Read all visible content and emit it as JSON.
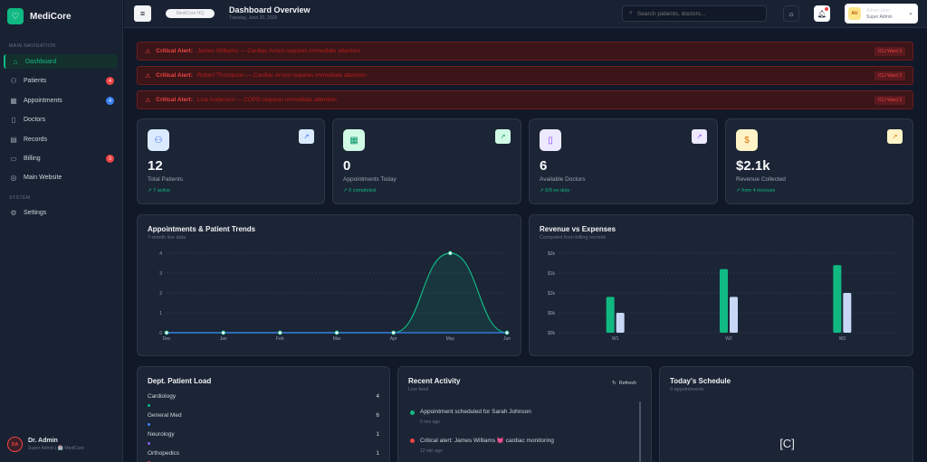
{
  "app": {
    "name": "MediCore"
  },
  "sidebar": {
    "section_main": "MAIN NAVIGATION",
    "section_system": "SYSTEM",
    "items": [
      {
        "label": "Dashboard",
        "icon": "home-icon",
        "active": true
      },
      {
        "label": "Patients",
        "icon": "users-icon",
        "badge": "4",
        "badge_color": "#ef4444"
      },
      {
        "label": "Appointments",
        "icon": "calendar-icon",
        "badge": "4",
        "badge_color": "#3b82f6"
      },
      {
        "label": "Doctors",
        "icon": "doctor-icon"
      },
      {
        "label": "Records",
        "icon": "file-icon"
      },
      {
        "label": "Billing",
        "icon": "wallet-icon",
        "badge": "3",
        "badge_color": "#ef4444"
      },
      {
        "label": "Main Website",
        "icon": "globe-icon"
      }
    ],
    "system_items": [
      {
        "label": "Settings",
        "icon": "gear-icon"
      }
    ],
    "user": {
      "initials": "DA",
      "name": "Dr. Admin",
      "role": "Super Admin | 🏥 MediCore"
    }
  },
  "header": {
    "pill_text": "MediCore HQ",
    "title": "Dashboard Overview",
    "date": "Tuesday, June 30, 2026",
    "search_placeholder": "Search patients, doctors...",
    "profile": {
      "initials": "AU",
      "name": "Admin User",
      "role": "Super Admin"
    }
  },
  "alerts": [
    {
      "label": "Critical Alert:",
      "message": "James Williams — Cardiac Arrest requires immediate attention",
      "location": "ICU Ward 3"
    },
    {
      "label": "Critical Alert:",
      "message": "Robert Thompson — Cardiac Arrest requires immediate attention",
      "location": "ICU Ward 3"
    },
    {
      "label": "Critical Alert:",
      "message": "Lisa Anderson — COPD requires immediate attention",
      "location": "ICU Ward 3"
    }
  ],
  "stats": [
    {
      "value": "12",
      "label": "Total Patients",
      "sub": "↗ 7 active",
      "icon": "users-icon",
      "icon_bg": "#dbeafe",
      "icon_color": "#2563eb",
      "trend_bg": "#dbeafe",
      "trend_color": "#2563eb"
    },
    {
      "value": "0",
      "label": "Appointments Today",
      "sub": "↗ 0 completed",
      "icon": "calendar-icon",
      "icon_bg": "#d1fae5",
      "icon_color": "#059669",
      "trend_bg": "#d1fae5",
      "trend_color": "#059669"
    },
    {
      "value": "6",
      "label": "Available Doctors",
      "sub": "↗ 6/9 on duty",
      "icon": "doctor-icon",
      "icon_bg": "#ede9fe",
      "icon_color": "#7c3aed",
      "trend_bg": "#ede9fe",
      "trend_color": "#7c3aed"
    },
    {
      "value": "$2.1k",
      "label": "Revenue Collected",
      "sub": "↗ from 4 invoices",
      "icon": "dollar-icon",
      "icon_bg": "#fef3c7",
      "icon_color": "#d97706",
      "trend_bg": "#fef3c7",
      "trend_color": "#d97706"
    }
  ],
  "trend_card": {
    "title": "Appointments & Patient Trends",
    "subtitle": "7-month live data"
  },
  "revenue_card": {
    "title": "Revenue vs Expenses",
    "subtitle": "Computed from billing records"
  },
  "dept_card": {
    "title": "Dept. Patient Load",
    "items": [
      {
        "name": "Cardiology",
        "count": "4",
        "color": "#10b981"
      },
      {
        "name": "General Med",
        "count": "6",
        "color": "#3b82f6"
      },
      {
        "name": "Neurology",
        "count": "1",
        "color": "#8b5cf6"
      },
      {
        "name": "Orthopedics",
        "count": "1",
        "color": "#ef4444"
      }
    ]
  },
  "activity_card": {
    "title": "Recent Activity",
    "subtitle": "Live feed",
    "refresh_label": "Refresh",
    "items": [
      {
        "text": "Appointment scheduled for Sarah Johnson",
        "time": "5 min ago",
        "color": "#10b981"
      },
      {
        "text": "Critical alert: James Williams 💓 cardiac monitoring",
        "time": "12 min ago",
        "color": "#ef4444"
      }
    ]
  },
  "schedule_card": {
    "title": "Today's Schedule",
    "subtitle": "0 appointments",
    "empty_glyph": "[C]"
  },
  "chart_data": [
    {
      "type": "area",
      "title": "Appointments & Patient Trends",
      "categories": [
        "Dec",
        "Jan",
        "Feb",
        "Mar",
        "Apr",
        "May",
        "Jun"
      ],
      "series": [
        {
          "values": [
            0,
            0,
            0,
            0,
            0,
            4,
            0
          ],
          "color": "#10b981"
        },
        {
          "values": [
            0,
            0,
            0,
            0,
            0,
            0,
            0
          ],
          "color": "#3b82f6"
        }
      ],
      "yticks": [
        "0",
        "1",
        "2",
        "3",
        "4"
      ],
      "ylim": [
        0,
        4
      ],
      "grid": true
    },
    {
      "type": "bar",
      "title": "Revenue vs Expenses",
      "categories": [
        "W1",
        "W2",
        "W3"
      ],
      "series": [
        {
          "values": [
            0.9,
            1.6,
            1.7
          ],
          "color": "#10b981"
        },
        {
          "values": [
            0.5,
            0.9,
            1.0
          ],
          "color": "#c7d7f5"
        }
      ],
      "yticks": [
        "$0k",
        "$0k",
        "$1k",
        "$1k",
        "$2k"
      ],
      "ylim": [
        0,
        2
      ],
      "grid": true
    }
  ]
}
